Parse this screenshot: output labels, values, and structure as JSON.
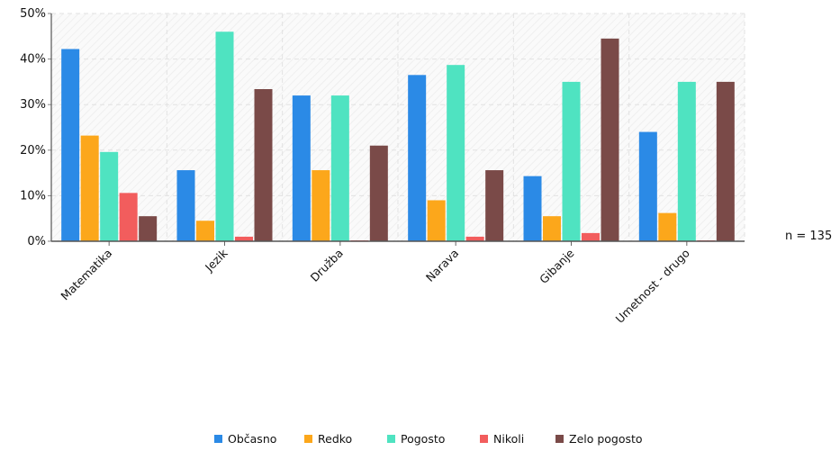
{
  "chart_data": {
    "type": "bar",
    "categories": [
      "Matematika",
      "Jezik",
      "Družba",
      "Narava",
      "Gibanje",
      "Umetnost - drugo"
    ],
    "series": [
      {
        "name": "Občasno",
        "color": "#2b8ae6",
        "values": [
          42.2,
          15.6,
          32.0,
          36.5,
          14.3,
          24.0
        ]
      },
      {
        "name": "Redko",
        "color": "#fca71b",
        "values": [
          23.2,
          4.5,
          15.6,
          9.0,
          5.5,
          6.2
        ]
      },
      {
        "name": "Pogosto",
        "color": "#4fe3c1",
        "values": [
          19.6,
          46.0,
          32.0,
          38.7,
          35.0,
          35.0
        ]
      },
      {
        "name": "Nikoli",
        "color": "#f25d5d",
        "values": [
          10.6,
          1.0,
          0.2,
          1.0,
          1.8,
          0.2
        ]
      },
      {
        "name": "Zelo pogosto",
        "color": "#7a4a48",
        "values": [
          5.5,
          33.4,
          21.0,
          15.6,
          44.5,
          35.0
        ]
      }
    ],
    "y_ticks": [
      "0%",
      "10%",
      "20%",
      "30%",
      "40%",
      "50%"
    ],
    "ylim": [
      0,
      50
    ],
    "grid": true,
    "legend_position": "bottom",
    "annotation": "n = 135",
    "title": "",
    "xlabel": "",
    "ylabel": ""
  }
}
